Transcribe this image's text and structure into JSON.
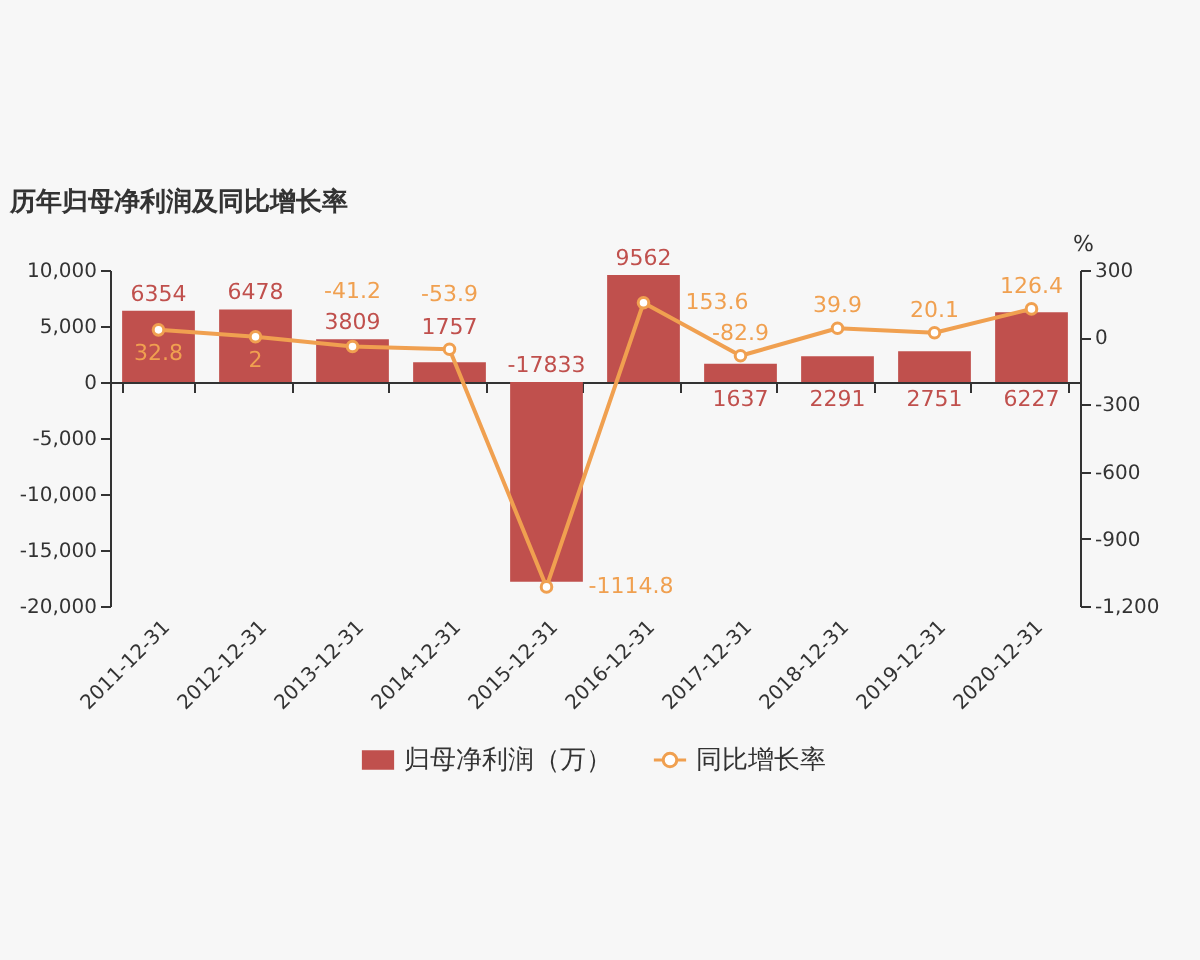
{
  "chart_data": {
    "type": "bar",
    "title": "历年归母净利润及同比增长率",
    "categories": [
      "2011-12-31",
      "2012-12-31",
      "2013-12-31",
      "2014-12-31",
      "2015-12-31",
      "2016-12-31",
      "2017-12-31",
      "2018-12-31",
      "2019-12-31",
      "2020-12-31"
    ],
    "series": [
      {
        "name": "归母净利润（万）",
        "color": "#c0504d",
        "values": [
          6354,
          6478,
          3809,
          1757,
          -17833,
          9562,
          1637,
          2291,
          2751,
          6227
        ]
      },
      {
        "name": "同比增长率",
        "type": "line",
        "axis": "y2",
        "color": "#f0a050",
        "values": [
          32.8,
          2,
          -41.2,
          -53.9,
          -1114.8,
          153.6,
          -82.9,
          39.9,
          20.1,
          126.4
        ]
      }
    ],
    "y2label": "%",
    "ylim": [
      -20000,
      10000
    ],
    "yticks": [
      {
        "value": -20000,
        "label": "-20,000"
      },
      {
        "value": -15000,
        "label": "-15,000"
      },
      {
        "value": -10000,
        "label": "-10,000"
      },
      {
        "value": -5000,
        "label": "-5,000"
      },
      0,
      {
        "value": 5000,
        "label": "5,000"
      },
      {
        "value": 10000,
        "label": "10,000"
      }
    ],
    "y2lim": [
      -1200,
      300
    ],
    "y2ticks": [
      {
        "value": -1200,
        "label": "-1,200"
      },
      -900,
      -600,
      -300,
      0,
      300
    ],
    "data_labels": true,
    "legend": "bottom",
    "marker": "circle",
    "line_style": "solid"
  }
}
